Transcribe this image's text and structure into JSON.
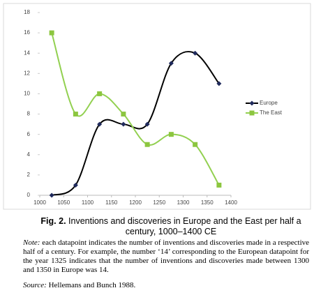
{
  "chart_data": {
    "type": "line",
    "x": [
      1025,
      1075,
      1125,
      1175,
      1225,
      1275,
      1325,
      1375
    ],
    "series": [
      {
        "name": "Europe",
        "color": "#000000",
        "marker_color": "#1f2a5c",
        "marker": "diamond",
        "values": [
          0,
          1,
          7,
          7,
          7,
          13,
          14,
          11
        ]
      },
      {
        "name": "The East",
        "color": "#92d050",
        "marker_color": "#8cc63f",
        "marker": "square",
        "values": [
          16,
          8,
          10,
          8,
          5,
          6,
          5,
          1
        ]
      }
    ],
    "xlim": [
      1000,
      1400
    ],
    "xticks": [
      1000,
      1050,
      1100,
      1150,
      1200,
      1250,
      1300,
      1350,
      1400
    ],
    "ylim": [
      0,
      18
    ],
    "yticks": [
      0,
      2,
      4,
      6,
      8,
      10,
      12,
      14,
      16,
      18
    ],
    "smooth": true,
    "legend": "right"
  },
  "caption": {
    "label": "Fig. 2.",
    "title": "Inventions and discoveries in Europe and the East per half a century, 1000–1400 CE"
  },
  "note": {
    "label": "Note:",
    "text": "each datapoint indicates the number of inventions and discoveries made in a respective half of a century. For example, the number ‘14’ corresponding to the European datapoint for the year 1325 indicates that the number of inventions and discoveries made between 1300 and 1350 in Europe was 14."
  },
  "source": {
    "label": "Source:",
    "text": "Hellemans and Bunch 1988."
  }
}
